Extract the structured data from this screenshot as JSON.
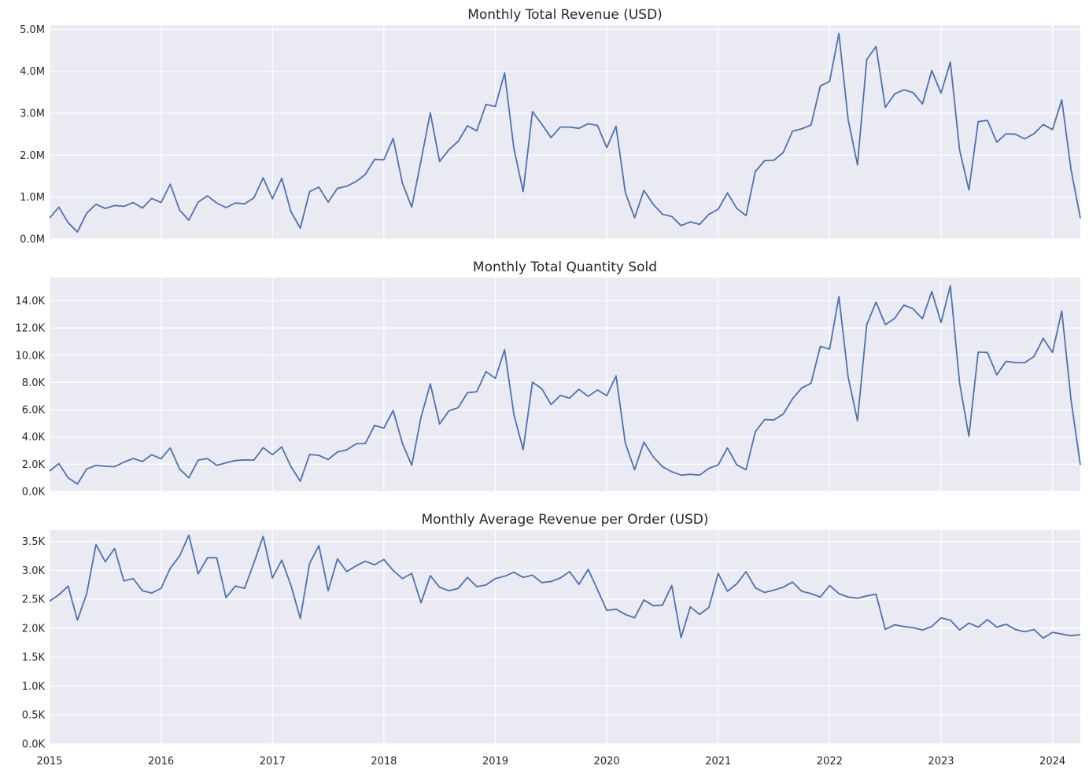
{
  "x_tick_labels": [
    "2015",
    "2016",
    "2017",
    "2018",
    "2019",
    "2020",
    "2021",
    "2022",
    "2023",
    "2024"
  ],
  "x_start": "2015-01",
  "x_end": "2024-04",
  "chart_data": [
    {
      "type": "line",
      "title": "Monthly Total Revenue (USD)",
      "xlabel": "",
      "ylabel": "",
      "ylim": [
        0,
        5100000
      ],
      "yticks": [
        0,
        1000000,
        2000000,
        3000000,
        4000000,
        5000000
      ],
      "ytick_labels": [
        "0.0M",
        "1.0M",
        "2.0M",
        "3.0M",
        "4.0M",
        "5.0M"
      ],
      "color": "#4c72b0",
      "grid": true,
      "series": [
        {
          "values": [
            500000,
            760000,
            390000,
            170000,
            620000,
            830000,
            730000,
            800000,
            780000,
            870000,
            740000,
            970000,
            870000,
            1310000,
            690000,
            450000,
            880000,
            1030000,
            860000,
            750000,
            860000,
            840000,
            980000,
            1460000,
            960000,
            1450000,
            650000,
            260000,
            1130000,
            1240000,
            880000,
            1210000,
            1260000,
            1370000,
            1540000,
            1900000,
            1890000,
            2400000,
            1330000,
            760000,
            1870000,
            3010000,
            1850000,
            2130000,
            2330000,
            2700000,
            2580000,
            3210000,
            3160000,
            3960000,
            2160000,
            1130000,
            3040000,
            2740000,
            2420000,
            2670000,
            2670000,
            2640000,
            2750000,
            2710000,
            2180000,
            2690000,
            1110000,
            510000,
            1160000,
            830000,
            590000,
            540000,
            320000,
            410000,
            350000,
            590000,
            710000,
            1100000,
            730000,
            560000,
            1610000,
            1870000,
            1880000,
            2060000,
            2570000,
            2630000,
            2720000,
            3650000,
            3760000,
            4900000,
            2840000,
            1770000,
            4280000,
            4590000,
            3140000,
            3460000,
            3560000,
            3490000,
            3220000,
            4020000,
            3480000,
            4220000,
            2120000,
            1170000,
            2800000,
            2830000,
            2310000,
            2510000,
            2500000,
            2390000,
            2510000,
            2730000,
            2610000,
            3320000,
            1650000,
            500000
          ]
        }
      ]
    },
    {
      "type": "line",
      "title": "Monthly Total Quantity Sold",
      "xlabel": "",
      "ylabel": "",
      "ylim": [
        0,
        15700
      ],
      "yticks": [
        0,
        2000,
        4000,
        6000,
        8000,
        10000,
        12000,
        14000
      ],
      "ytick_labels": [
        "0.0K",
        "2.0K",
        "4.0K",
        "6.0K",
        "8.0K",
        "10.0K",
        "12.0K",
        "14.0K"
      ],
      "color": "#4c72b0",
      "grid": true,
      "series": [
        {
          "values": [
            1500,
            2050,
            1000,
            550,
            1650,
            1920,
            1850,
            1820,
            2150,
            2420,
            2200,
            2700,
            2400,
            3200,
            1650,
            1000,
            2300,
            2420,
            1920,
            2100,
            2270,
            2320,
            2300,
            3220,
            2700,
            3270,
            1820,
            750,
            2720,
            2650,
            2350,
            2900,
            3050,
            3500,
            3520,
            4850,
            4650,
            5950,
            3520,
            1920,
            5450,
            7900,
            4950,
            5920,
            6150,
            7250,
            7320,
            8800,
            8300,
            10400,
            5650,
            3070,
            8020,
            7550,
            6380,
            7050,
            6850,
            7500,
            6980,
            7450,
            7030,
            8480,
            3550,
            1600,
            3620,
            2550,
            1820,
            1450,
            1200,
            1260,
            1200,
            1700,
            1950,
            3200,
            1950,
            1600,
            4380,
            5280,
            5250,
            5680,
            6800,
            7600,
            7950,
            10650,
            10450,
            14300,
            8380,
            5200,
            12250,
            13900,
            12250,
            12700,
            13680,
            13400,
            12680,
            14680,
            12400,
            15100,
            7950,
            4050,
            10230,
            10200,
            8560,
            9550,
            9460,
            9450,
            9900,
            11230,
            10200,
            13250,
            6700,
            1950
          ]
        }
      ]
    },
    {
      "type": "line",
      "title": "Monthly Average Revenue per Order (USD)",
      "xlabel": "",
      "ylabel": "",
      "ylim": [
        0,
        3700
      ],
      "yticks": [
        0,
        500,
        1000,
        1500,
        2000,
        2500,
        3000,
        3500
      ],
      "ytick_labels": [
        "0.0K",
        "0.5K",
        "1.0K",
        "1.5K",
        "2.0K",
        "2.5K",
        "3.0K",
        "3.5K"
      ],
      "color": "#4c72b0",
      "grid": true,
      "series": [
        {
          "values": [
            2470,
            2580,
            2730,
            2140,
            2600,
            3450,
            3150,
            3380,
            2820,
            2860,
            2650,
            2610,
            2690,
            3040,
            3250,
            3610,
            2940,
            3220,
            3220,
            2530,
            2730,
            2690,
            3130,
            3590,
            2870,
            3180,
            2740,
            2170,
            3120,
            3430,
            2650,
            3200,
            2980,
            3080,
            3160,
            3100,
            3190,
            3000,
            2860,
            2950,
            2440,
            2910,
            2710,
            2650,
            2690,
            2880,
            2720,
            2750,
            2860,
            2900,
            2970,
            2880,
            2920,
            2790,
            2810,
            2870,
            2980,
            2760,
            3020,
            2670,
            2310,
            2330,
            2240,
            2180,
            2490,
            2390,
            2400,
            2740,
            1840,
            2370,
            2240,
            2360,
            2950,
            2640,
            2770,
            2980,
            2700,
            2620,
            2660,
            2710,
            2800,
            2640,
            2600,
            2540,
            2740,
            2600,
            2540,
            2520,
            2560,
            2590,
            1980,
            2060,
            2030,
            2010,
            1970,
            2030,
            2180,
            2140,
            1970,
            2090,
            2020,
            2150,
            2020,
            2070,
            1980,
            1940,
            1980,
            1830,
            1930,
            1900,
            1870,
            1890
          ]
        }
      ]
    }
  ]
}
